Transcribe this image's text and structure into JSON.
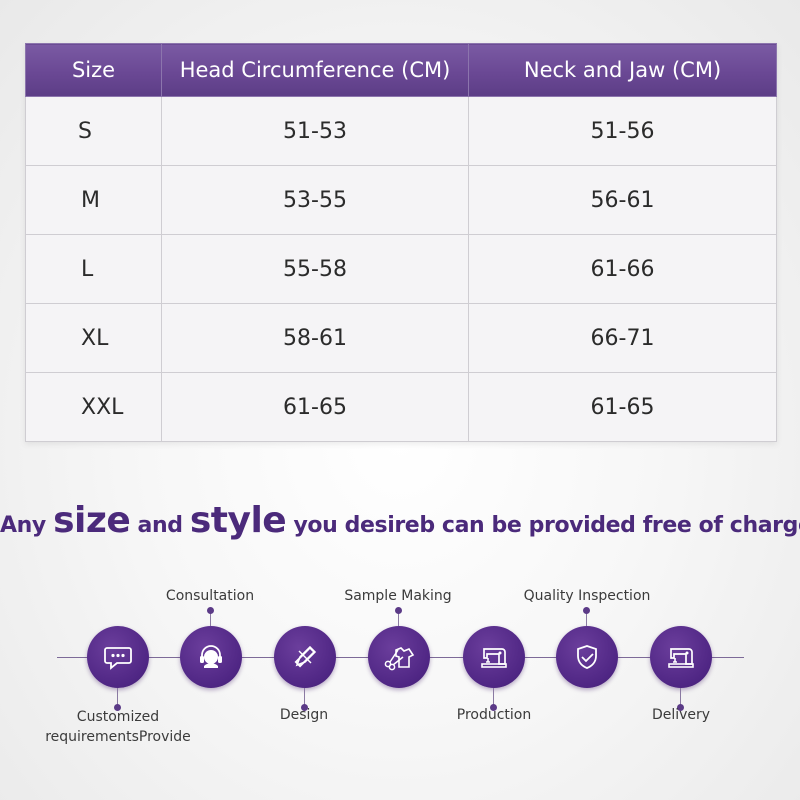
{
  "table": {
    "headers": [
      "Size",
      "Head Circumference (CM)",
      "Neck and Jaw (CM)"
    ],
    "rows": [
      {
        "size": "S",
        "head": "51-53",
        "neck": "51-56"
      },
      {
        "size": "M",
        "head": "53-55",
        "neck": "56-61"
      },
      {
        "size": "L",
        "head": "55-58",
        "neck": "61-66"
      },
      {
        "size": "XL",
        "head": "58-61",
        "neck": "66-71"
      },
      {
        "size": "XXL",
        "head": "61-65",
        "neck": "61-65"
      }
    ]
  },
  "slogan": {
    "part1": "Any",
    "size": "size",
    "and": "and",
    "style": "style",
    "rest": "you desireb can be provided free of charge"
  },
  "process": {
    "steps": [
      {
        "label": "Customized requirementsProvide",
        "label_line1": "Customized",
        "label_line2": "requirementsProvide",
        "icon": "chat-bubble-icon"
      },
      {
        "label": "Consultation",
        "icon": "headset-icon"
      },
      {
        "label": "Design",
        "icon": "pencil-ruler-icon"
      },
      {
        "label": "Sample Making",
        "icon": "tailoring-icon"
      },
      {
        "label": "Production",
        "icon": "sewing-machine-icon"
      },
      {
        "label": "Quality Inspection",
        "icon": "shield-check-icon"
      },
      {
        "label": "Delivery",
        "icon": "sewing-machine-icon"
      }
    ]
  },
  "colors": {
    "header_purple": "#6a4894",
    "slogan_purple": "#4b2a7b",
    "circle_purple": "#4f2684"
  }
}
